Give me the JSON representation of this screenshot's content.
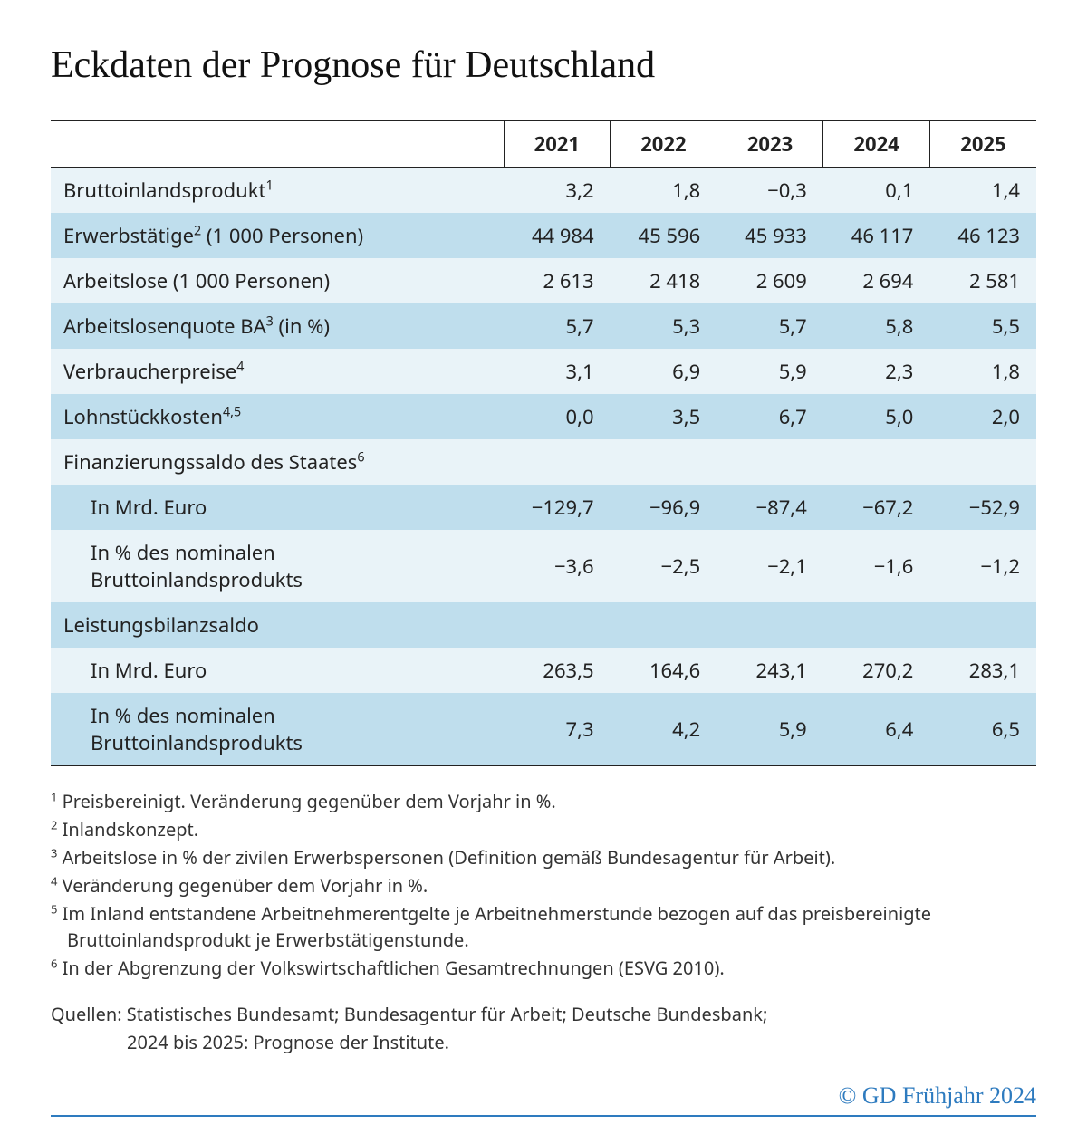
{
  "title": "Eckdaten der Prognose für Deutschland",
  "colors": {
    "zebra_light": "#e9f3f8",
    "zebra_dark": "#bfdeed",
    "rule": "#222222",
    "accent": "#2e7bbf",
    "text": "#222222"
  },
  "table": {
    "years": [
      "2021",
      "2022",
      "2023",
      "2024",
      "2025"
    ],
    "rows": [
      {
        "label": "Bruttoinlandsprodukt",
        "sup": "1",
        "indent": false,
        "values": [
          "3,2",
          "1,8",
          "−0,3",
          "0,1",
          "1,4"
        ]
      },
      {
        "label": "Erwerbstätige",
        "sup": "2",
        "suffix": " (1 000 Personen)",
        "indent": false,
        "values": [
          "44 984",
          "45 596",
          "45 933",
          "46 117",
          "46 123"
        ]
      },
      {
        "label": "Arbeitslose (1 000 Personen)",
        "sup": "",
        "indent": false,
        "values": [
          "2 613",
          "2 418",
          "2 609",
          "2 694",
          "2 581"
        ]
      },
      {
        "label": "Arbeitslosenquote BA",
        "sup": "3",
        "suffix": " (in %)",
        "indent": false,
        "values": [
          "5,7",
          "5,3",
          "5,7",
          "5,8",
          "5,5"
        ]
      },
      {
        "label": "Verbraucherpreise",
        "sup": "4",
        "indent": false,
        "values": [
          "3,1",
          "6,9",
          "5,9",
          "2,3",
          "1,8"
        ]
      },
      {
        "label": "Lohnstückkosten",
        "sup": "4,5",
        "indent": false,
        "values": [
          "0,0",
          "3,5",
          "6,7",
          "5,0",
          "2,0"
        ]
      },
      {
        "label": "Finanzierungssaldo des Staates",
        "sup": "6",
        "indent": false,
        "values": [
          "",
          "",
          "",
          "",
          ""
        ]
      },
      {
        "label": "In Mrd. Euro",
        "sup": "",
        "indent": true,
        "values": [
          "−129,7",
          "−96,9",
          "−87,4",
          "−67,2",
          "−52,9"
        ]
      },
      {
        "label": "In % des nominalen Bruttoinlandsprodukts",
        "sup": "",
        "indent": true,
        "values": [
          "−3,6",
          "−2,5",
          "−2,1",
          "−1,6",
          "−1,2"
        ]
      },
      {
        "label": "Leistungsbilanzsaldo",
        "sup": "",
        "indent": false,
        "values": [
          "",
          "",
          "",
          "",
          ""
        ]
      },
      {
        "label": "In Mrd. Euro",
        "sup": "",
        "indent": true,
        "values": [
          "263,5",
          "164,6",
          "243,1",
          "270,2",
          "283,1"
        ]
      },
      {
        "label": "In % des nominalen Bruttoinlandsprodukts",
        "sup": "",
        "indent": true,
        "values": [
          "7,3",
          "4,2",
          "5,9",
          "6,4",
          "6,5"
        ]
      }
    ]
  },
  "footnotes": [
    {
      "n": "1",
      "text": "Preisbereinigt. Veränderung gegenüber dem Vorjahr in %."
    },
    {
      "n": "2",
      "text": "Inlandskonzept."
    },
    {
      "n": "3",
      "text": "Arbeitslose in % der zivilen Erwerbspersonen (Definition gemäß Bundesagentur für Arbeit)."
    },
    {
      "n": "4",
      "text": "Veränderung gegenüber dem Vorjahr in %."
    },
    {
      "n": "5",
      "text": "Im Inland entstandene Arbeitnehmerentgelte je Arbeitnehmerstunde bezogen auf das preisbereinigte Bruttoinlandsprodukt je Erwerbstätigenstunde."
    },
    {
      "n": "6",
      "text": "In der Abgrenzung der Volkswirtschaftlichen Gesamtrechnungen (ESVG 2010)."
    }
  ],
  "sources": {
    "line1": "Quellen: Statistisches Bundesamt; Bundesagentur für Arbeit; Deutsche Bundesbank;",
    "line2": "2024 bis 2025: Prognose der Institute."
  },
  "credit": "© GD Frühjahr 2024"
}
